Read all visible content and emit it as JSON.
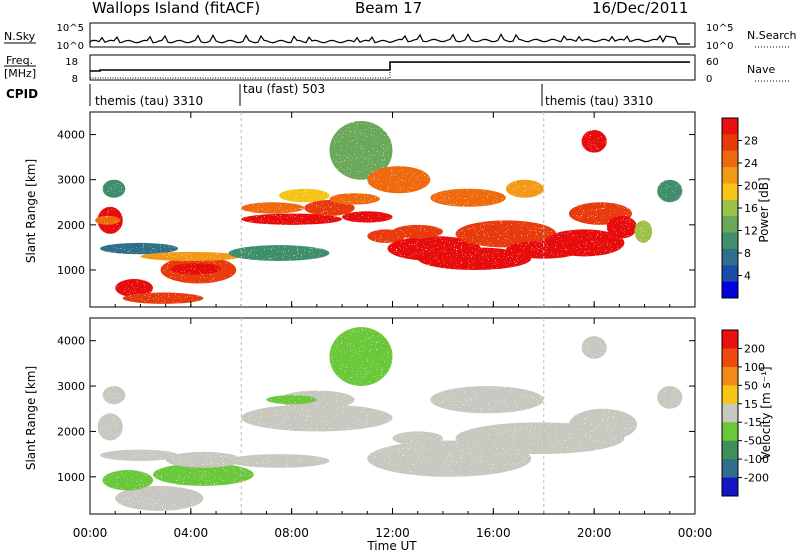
{
  "header": {
    "station": "Wallops Island (fitACF)",
    "beam": "Beam 17",
    "date": "16/Dec/2011"
  },
  "noise_panel": {
    "left_label": "N.Sky",
    "left_ticks": [
      "10^5",
      "10^0"
    ],
    "right_label": "N.Search",
    "right_ticks": [
      "10^5",
      "10^0"
    ]
  },
  "freq_panel": {
    "left_label_line1": "Freq.",
    "left_label_line2": "[MHz]",
    "left_ticks": [
      "18",
      "8"
    ],
    "right_label": "Nave",
    "right_ticks": [
      "60",
      "0"
    ]
  },
  "cpid": {
    "label": "CPID",
    "segments": [
      {
        "name": "themis (tau) 3310",
        "start_hour": 0
      },
      {
        "name": "tau (fast) 503",
        "start_hour": 6
      },
      {
        "name": "themis (tau) 3310",
        "start_hour": 18
      }
    ]
  },
  "chart_data": [
    {
      "type": "heatmap",
      "title": "",
      "ylabel": "Slant Range [km]",
      "xlabel": "",
      "yticks": [
        1000,
        2000,
        3000,
        4000
      ],
      "ylim": [
        180,
        4500
      ],
      "xlim_hours": [
        0,
        24
      ],
      "colorbar": {
        "label": "Power [dB]",
        "ticks": [
          4,
          8,
          12,
          16,
          20,
          24,
          28
        ],
        "colors": [
          "#0000e0",
          "#1c4aa8",
          "#2f6f8a",
          "#3f8f6c",
          "#6aa85a",
          "#9cc24a",
          "#f5c518",
          "#f29a18",
          "#ee6a10",
          "#e83a0a",
          "#e81010"
        ]
      }
    },
    {
      "type": "heatmap",
      "title": "",
      "ylabel": "Slant Range [km]",
      "xlabel": "Time UT",
      "yticks": [
        1000,
        2000,
        3000,
        4000
      ],
      "ylim": [
        180,
        4500
      ],
      "xlim_hours": [
        0,
        24
      ],
      "xticks": [
        "00:00",
        "04:00",
        "08:00",
        "12:00",
        "16:00",
        "20:00",
        "00:00"
      ],
      "colorbar": {
        "label": "Velocity [m s⁻¹]",
        "ticks": [
          "200",
          "100",
          "50",
          "15",
          "-15",
          "-50",
          "-100",
          "-200"
        ],
        "colors": [
          "#1414c8",
          "#2f6f8a",
          "#3f8f5a",
          "#6cc83a",
          "#c8c8c0",
          "#f5c518",
          "#f28a18",
          "#ee4a10",
          "#e81010"
        ]
      }
    }
  ]
}
